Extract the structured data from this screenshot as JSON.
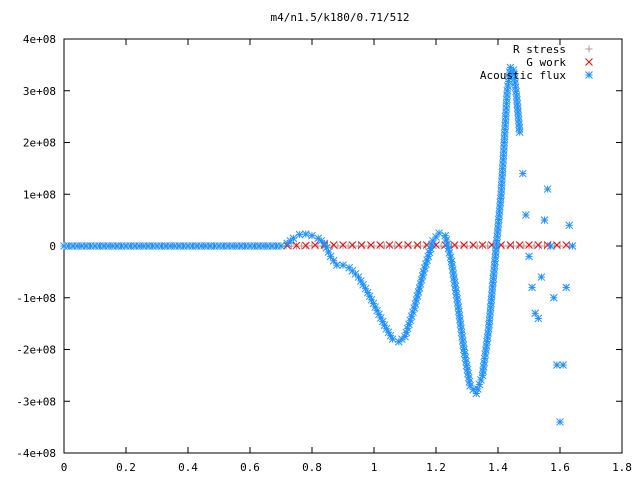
{
  "chart_data": {
    "type": "scatter",
    "title": "m4/n1.5/k180/0.71/512",
    "xlabel": "",
    "ylabel": "",
    "xlim": [
      0,
      1.8
    ],
    "ylim": [
      -400000000,
      400000000
    ],
    "x_ticks": [
      {
        "value": 0,
        "label": "0"
      },
      {
        "value": 0.2,
        "label": "0.2"
      },
      {
        "value": 0.4,
        "label": "0.4"
      },
      {
        "value": 0.6,
        "label": "0.6"
      },
      {
        "value": 0.8,
        "label": "0.8"
      },
      {
        "value": 1.0,
        "label": "1"
      },
      {
        "value": 1.2,
        "label": "1.2"
      },
      {
        "value": 1.4,
        "label": "1.4"
      },
      {
        "value": 1.6,
        "label": "1.6"
      },
      {
        "value": 1.8,
        "label": "1.8"
      }
    ],
    "y_ticks": [
      {
        "value": 400000000,
        "label": "4e+08"
      },
      {
        "value": 300000000,
        "label": "3e+08"
      },
      {
        "value": 200000000,
        "label": "2e+08"
      },
      {
        "value": 100000000,
        "label": "1e+08"
      },
      {
        "value": 0,
        "label": "0"
      },
      {
        "value": -100000000,
        "label": "-1e+08"
      },
      {
        "value": -200000000,
        "label": "-2e+08"
      },
      {
        "value": -300000000,
        "label": "-3e+08"
      },
      {
        "value": -400000000,
        "label": "-4e+08"
      }
    ],
    "grid": false,
    "legend_position": "top-right",
    "series": [
      {
        "name": "R stress",
        "marker": "+",
        "color": "#a0a0a0",
        "points": [
          [
            0.0,
            0
          ],
          [
            0.1,
            0
          ],
          [
            0.2,
            0
          ],
          [
            0.3,
            0
          ],
          [
            0.4,
            0
          ],
          [
            0.5,
            0
          ],
          [
            0.6,
            0
          ],
          [
            0.7,
            0
          ],
          [
            0.8,
            0
          ],
          [
            0.9,
            0
          ],
          [
            1.0,
            0
          ],
          [
            1.1,
            0
          ],
          [
            1.2,
            0
          ],
          [
            1.3,
            0
          ],
          [
            1.4,
            0
          ],
          [
            1.5,
            0
          ],
          [
            1.6,
            0
          ],
          [
            1.63,
            0
          ]
        ]
      },
      {
        "name": "G work",
        "marker": "x",
        "color": "#ff0000",
        "points": [
          [
            0.72,
            1000000
          ],
          [
            0.75,
            1000000
          ],
          [
            0.78,
            1000000
          ],
          [
            0.81,
            2000000
          ],
          [
            0.84,
            2000000
          ],
          [
            0.87,
            2000000
          ],
          [
            0.9,
            2000000
          ],
          [
            0.93,
            2000000
          ],
          [
            0.96,
            2000000
          ],
          [
            0.99,
            2000000
          ],
          [
            1.02,
            2000000
          ],
          [
            1.05,
            2000000
          ],
          [
            1.08,
            2000000
          ],
          [
            1.11,
            2000000
          ],
          [
            1.14,
            2000000
          ],
          [
            1.17,
            2000000
          ],
          [
            1.2,
            2000000
          ],
          [
            1.23,
            2000000
          ],
          [
            1.26,
            2000000
          ],
          [
            1.29,
            2000000
          ],
          [
            1.32,
            2000000
          ],
          [
            1.35,
            2000000
          ],
          [
            1.38,
            2000000
          ],
          [
            1.41,
            2000000
          ],
          [
            1.44,
            2000000
          ],
          [
            1.47,
            2000000
          ],
          [
            1.5,
            2000000
          ],
          [
            1.53,
            2000000
          ],
          [
            1.56,
            2000000
          ],
          [
            1.59,
            2000000
          ],
          [
            1.62,
            2000000
          ]
        ]
      },
      {
        "name": "Acoustic flux",
        "marker": "*",
        "color": "#1e90ff",
        "points": [
          [
            0.0,
            0
          ],
          [
            0.1,
            0
          ],
          [
            0.2,
            0
          ],
          [
            0.3,
            0
          ],
          [
            0.4,
            0
          ],
          [
            0.5,
            0
          ],
          [
            0.6,
            0
          ],
          [
            0.7,
            0
          ],
          [
            0.72,
            5000000
          ],
          [
            0.74,
            15000000
          ],
          [
            0.76,
            22000000
          ],
          [
            0.78,
            23000000
          ],
          [
            0.8,
            20000000
          ],
          [
            0.82,
            15000000
          ],
          [
            0.84,
            5000000
          ],
          [
            0.86,
            -20000000
          ],
          [
            0.88,
            -37000000
          ],
          [
            0.9,
            -37000000
          ],
          [
            0.92,
            -42000000
          ],
          [
            0.95,
            -60000000
          ],
          [
            0.98,
            -90000000
          ],
          [
            1.01,
            -125000000
          ],
          [
            1.04,
            -160000000
          ],
          [
            1.06,
            -180000000
          ],
          [
            1.08,
            -185000000
          ],
          [
            1.1,
            -175000000
          ],
          [
            1.13,
            -120000000
          ],
          [
            1.16,
            -50000000
          ],
          [
            1.19,
            10000000
          ],
          [
            1.21,
            25000000
          ],
          [
            1.23,
            20000000
          ],
          [
            1.25,
            -30000000
          ],
          [
            1.27,
            -110000000
          ],
          [
            1.29,
            -200000000
          ],
          [
            1.31,
            -270000000
          ],
          [
            1.33,
            -285000000
          ],
          [
            1.35,
            -250000000
          ],
          [
            1.37,
            -160000000
          ],
          [
            1.39,
            -30000000
          ],
          [
            1.41,
            100000000
          ],
          [
            1.42,
            200000000
          ],
          [
            1.43,
            300000000
          ],
          [
            1.44,
            345000000
          ],
          [
            1.45,
            340000000
          ],
          [
            1.46,
            290000000
          ],
          [
            1.47,
            220000000
          ],
          [
            1.48,
            140000000
          ],
          [
            1.49,
            60000000
          ],
          [
            1.5,
            -20000000
          ],
          [
            1.51,
            -80000000
          ],
          [
            1.52,
            -130000000
          ],
          [
            1.53,
            -140000000
          ],
          [
            1.54,
            -60000000
          ],
          [
            1.55,
            50000000
          ],
          [
            1.56,
            110000000
          ],
          [
            1.57,
            0
          ],
          [
            1.58,
            -100000000
          ],
          [
            1.59,
            -230000000
          ],
          [
            1.6,
            -340000000
          ],
          [
            1.61,
            -230000000
          ],
          [
            1.62,
            -80000000
          ],
          [
            1.63,
            40000000
          ],
          [
            1.64,
            0
          ]
        ]
      }
    ]
  }
}
